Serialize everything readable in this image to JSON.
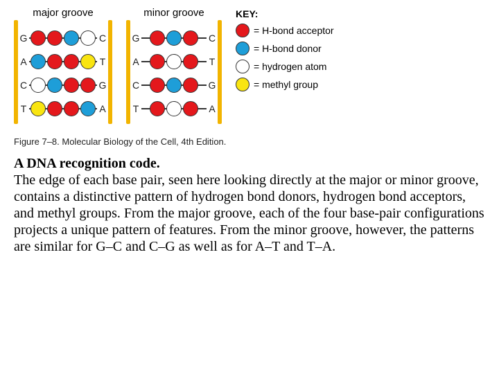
{
  "colors": {
    "red": "#e4181c",
    "blue": "#1e9ed8",
    "white": "#ffffff",
    "yellow": "#f9e511",
    "rail": "#f2b400",
    "line": "#333333"
  },
  "panels": [
    {
      "title": "major groove",
      "rows": [
        {
          "left": "G",
          "balls": [
            "red",
            "red",
            "blue",
            "white"
          ],
          "right": "C"
        },
        {
          "left": "A",
          "balls": [
            "blue",
            "red",
            "red",
            "yellow"
          ],
          "right": "T"
        },
        {
          "left": "C",
          "balls": [
            "white",
            "blue",
            "red",
            "red"
          ],
          "right": "G"
        },
        {
          "left": "T",
          "balls": [
            "yellow",
            "red",
            "red",
            "blue"
          ],
          "right": "A"
        }
      ]
    },
    {
      "title": "minor groove",
      "rows": [
        {
          "left": "G",
          "balls": [
            "red",
            "blue",
            "red"
          ],
          "right": "C"
        },
        {
          "left": "A",
          "balls": [
            "red",
            "white",
            "red"
          ],
          "right": "T"
        },
        {
          "left": "C",
          "balls": [
            "red",
            "blue",
            "red"
          ],
          "right": "G"
        },
        {
          "left": "T",
          "balls": [
            "red",
            "white",
            "red"
          ],
          "right": "A"
        }
      ]
    }
  ],
  "key": {
    "title": "KEY:",
    "items": [
      {
        "color": "red",
        "label": "= H-bond acceptor"
      },
      {
        "color": "blue",
        "label": "= H-bond donor"
      },
      {
        "color": "white",
        "label": "= hydrogen atom"
      },
      {
        "color": "yellow",
        "label": "= methyl group"
      }
    ]
  },
  "figure_caption": "Figure 7–8. Molecular Biology of the Cell, 4th Edition.",
  "desc_title": "A DNA recognition code.",
  "desc_body": "The edge of each base pair, seen here looking directly at the major or minor groove, contains a distinctive pattern of hydrogen bond donors, hydrogen bond acceptors, and methyl groups. From the major groove, each of the four base-pair configurations projects a unique pattern of features. From the minor groove, however, the patterns are similar for G–C and C–G as well as for A–T and T–A."
}
